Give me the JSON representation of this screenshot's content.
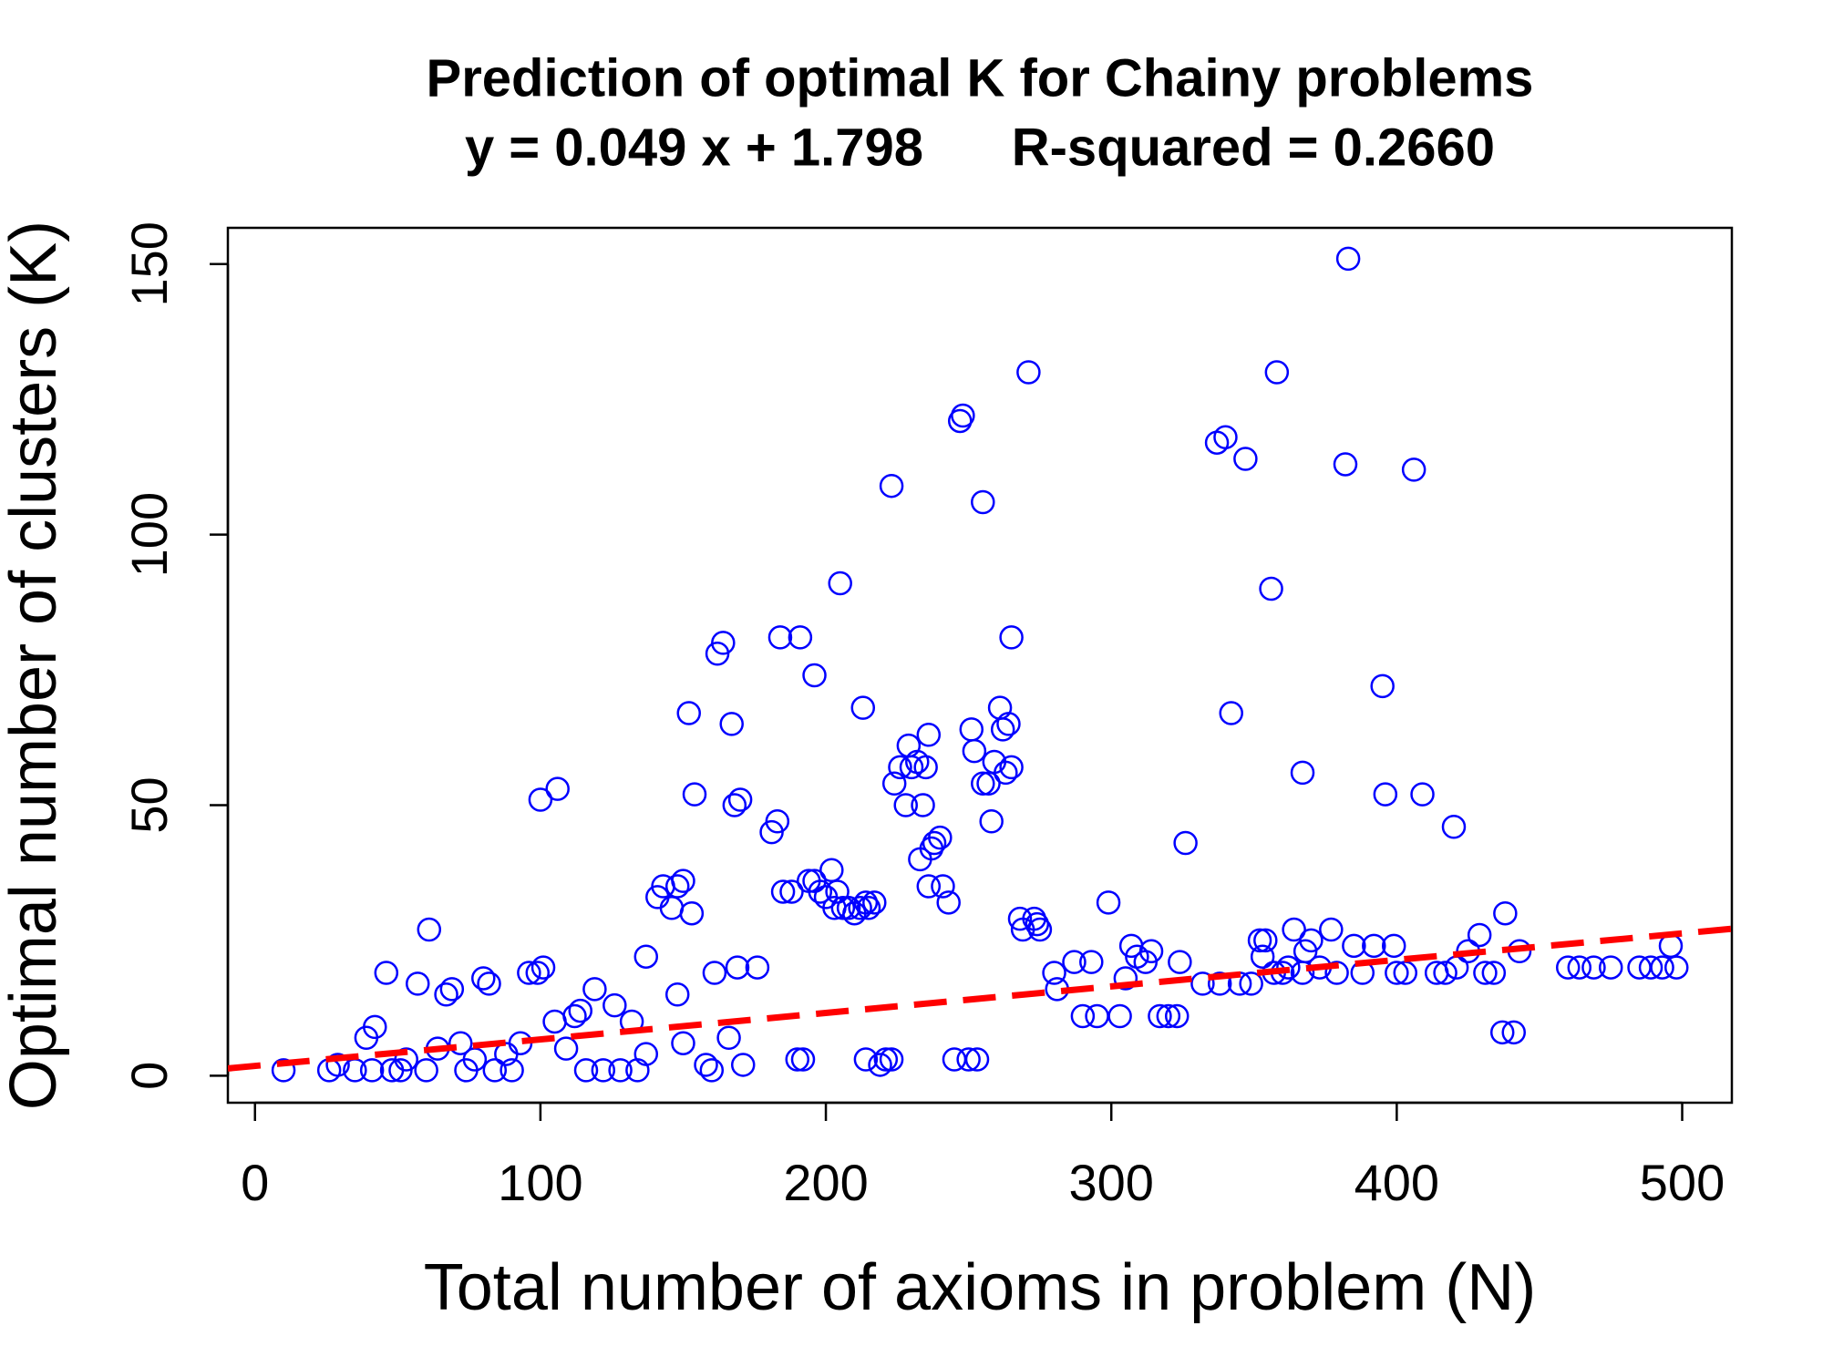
{
  "chart_data": {
    "type": "scatter",
    "title": "Prediction of optimal K for Chainy problems",
    "subtitle": "y = 0.049 x + 1.798      R-squared = 0.2660",
    "x_label": "Total number of axioms in problem (N)",
    "y_label": "Optimal number of clusters (K)",
    "xlim": [
      -9.5,
      517.4
    ],
    "ylim": [
      -5,
      156.7
    ],
    "xticks": [
      0,
      100,
      200,
      300,
      400,
      500
    ],
    "yticks": [
      0,
      50,
      100,
      150
    ],
    "color": "#0000ff",
    "fit_line": {
      "slope": 0.049,
      "intercept": 1.798,
      "color": "#ff0000",
      "dashed": true
    },
    "x": [
      10,
      26,
      29,
      35,
      39,
      42,
      41,
      46,
      48,
      51,
      53,
      57,
      61,
      60,
      64,
      67,
      69,
      72,
      74,
      77,
      80,
      82,
      84,
      88,
      90,
      93,
      96,
      99,
      101,
      100,
      106,
      105,
      109,
      112,
      114,
      116,
      119,
      122,
      126,
      128,
      132,
      134,
      137,
      137,
      141,
      143,
      146,
      148,
      148,
      150,
      150,
      152,
      153,
      154,
      158,
      160,
      161,
      162,
      164,
      166,
      167,
      168,
      170,
      169,
      171,
      176,
      181,
      183,
      184,
      185,
      188,
      190,
      191,
      192,
      194,
      196,
      196,
      198,
      200,
      202,
      203,
      204,
      205,
      206,
      208,
      210,
      212,
      213,
      214,
      215,
      217,
      214,
      219,
      221,
      223,
      223,
      224,
      226,
      228,
      229,
      230,
      232,
      233,
      234,
      235,
      236,
      236,
      237,
      238,
      240,
      241,
      243,
      245,
      247,
      248,
      250,
      251,
      252,
      253,
      255,
      255,
      257,
      258,
      259,
      261,
      262,
      263,
      264,
      265,
      265,
      268,
      269,
      271,
      273,
      274,
      275,
      280,
      281,
      287,
      290,
      293,
      295,
      299,
      303,
      305,
      307,
      309,
      312,
      314,
      317,
      320,
      323,
      324,
      326,
      332,
      337,
      338,
      340,
      342,
      345,
      347,
      349,
      352,
      353,
      354,
      356,
      357,
      358,
      360,
      362,
      364,
      367,
      367,
      368,
      370,
      373,
      377,
      379,
      382,
      383,
      385,
      388,
      392,
      395,
      396,
      399,
      400,
      403,
      406,
      409,
      414,
      417,
      420,
      421,
      425,
      429,
      431,
      434,
      437,
      438,
      441,
      443,
      460,
      464,
      469,
      475,
      485,
      489,
      493,
      496,
      498
    ],
    "values": [
      1,
      1,
      2,
      1,
      7,
      9,
      1,
      19,
      1,
      1,
      3,
      17,
      27,
      1,
      5,
      15,
      16,
      6,
      1,
      3,
      18,
      17,
      1,
      4,
      1,
      6,
      19,
      19,
      20,
      51,
      53,
      10,
      5,
      11,
      12,
      1,
      16,
      1,
      13,
      1,
      10,
      1,
      4,
      22,
      33,
      35,
      31,
      15,
      35,
      36,
      6,
      67,
      30,
      52,
      2,
      1,
      19,
      78,
      80,
      7,
      65,
      50,
      51,
      20,
      2,
      20,
      45,
      47,
      81,
      34,
      34,
      3,
      81,
      3,
      36,
      74,
      36,
      34,
      33,
      38,
      31,
      34,
      91,
      31,
      31,
      30,
      31,
      68,
      32,
      31,
      32,
      3,
      2,
      3,
      3,
      109,
      54,
      57,
      50,
      61,
      57,
      58,
      40,
      50,
      57,
      63,
      35,
      42,
      43,
      44,
      35,
      32,
      3,
      121,
      122,
      3,
      64,
      60,
      3,
      54,
      106,
      54,
      47,
      58,
      68,
      64,
      56,
      65,
      57,
      81,
      29,
      27,
      130,
      29,
      28,
      27,
      19,
      16,
      21,
      11,
      21,
      11,
      32,
      11,
      18,
      24,
      22,
      21,
      23,
      11,
      11,
      11,
      21,
      43,
      17,
      117,
      17,
      118,
      67,
      17,
      114,
      17,
      25,
      22,
      25,
      90,
      19,
      130,
      19,
      20,
      27,
      19,
      56,
      23,
      25,
      20,
      27,
      19,
      113,
      151,
      24,
      19,
      24,
      72,
      52,
      24,
      19,
      19,
      112,
      52,
      19,
      19,
      46,
      20,
      23,
      26,
      19,
      19,
      8,
      30,
      8,
      23,
      20,
      20,
      20,
      20,
      20,
      20,
      20,
      24,
      20
    ]
  }
}
